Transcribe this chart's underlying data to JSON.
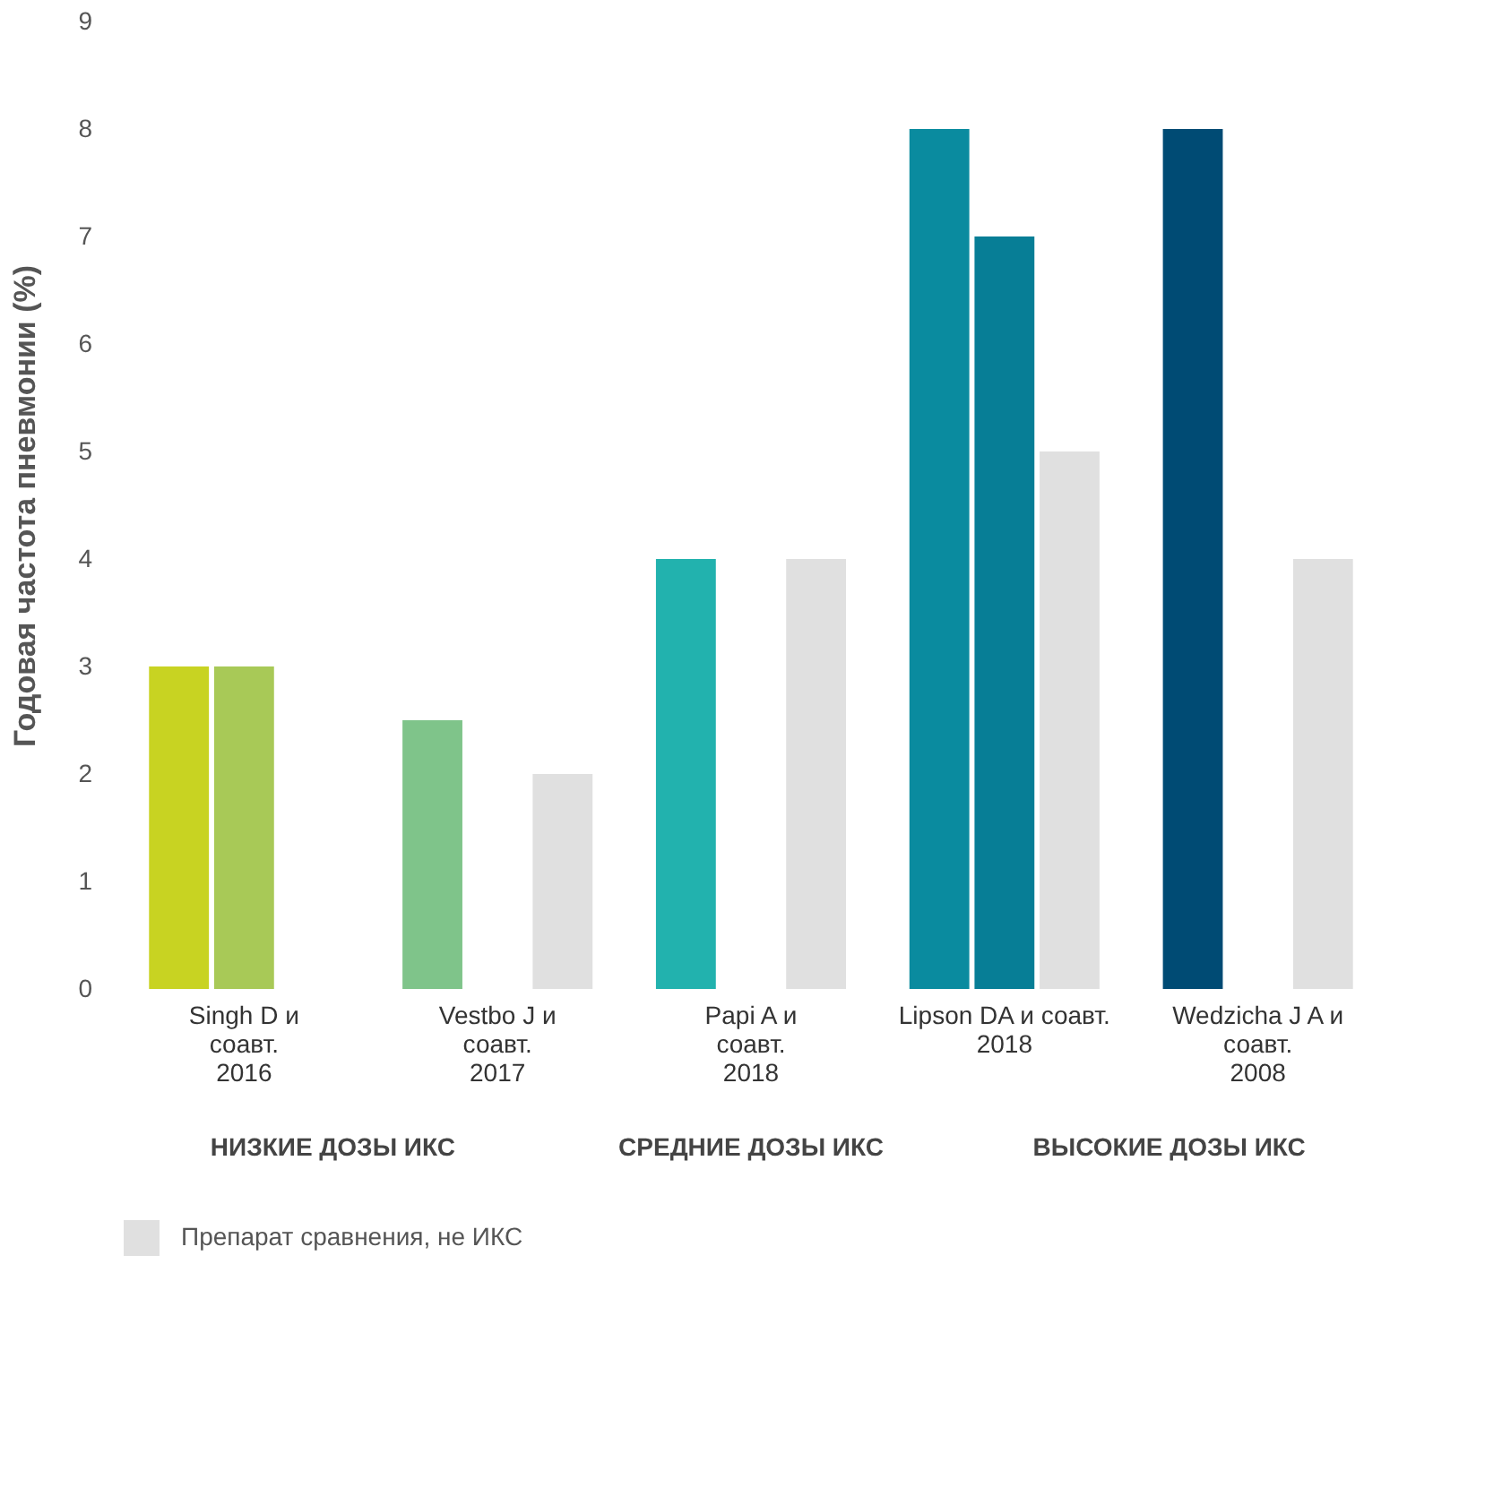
{
  "chart_data": {
    "type": "bar",
    "ylabel": "Годовая частота пневмонии (%)",
    "categories": [
      "Singh D и\nсоавт.\n2016",
      "Vestbo J и\nсоавт.\n2017",
      "Papi A и\nсоавт.\n2018",
      "Lipson DA и соавт.\n2018",
      "Wedzicha J A и\nсоавт.\n2008"
    ],
    "series": [
      {
        "colors": [
          "#c8d322",
          "#7fc48a",
          "#22b2ae",
          "#0a8b9f",
          "#004b74"
        ],
        "values": [
          3,
          2.5,
          4,
          8,
          8
        ]
      },
      {
        "colors": [
          "#a8c957",
          null,
          null,
          "#077e96",
          null
        ],
        "values": [
          3,
          null,
          null,
          7,
          null
        ]
      },
      {
        "name": "Препарат сравнения, не ИКС",
        "color": "#e0e0e0",
        "values": [
          null,
          2,
          4,
          5,
          4
        ]
      }
    ],
    "ylim": [
      0,
      9
    ],
    "yticks": [
      0,
      1,
      2,
      3,
      4,
      5,
      6,
      7,
      8,
      9
    ],
    "grid": false,
    "legend": "bottom",
    "annotations": [
      "НИЗКИЕ ДОЗЫ ИКС",
      "СРЕДНИЕ ДОЗЫ ИКС",
      "ВЫСОКИЕ ДОЗЫ ИКС"
    ]
  }
}
